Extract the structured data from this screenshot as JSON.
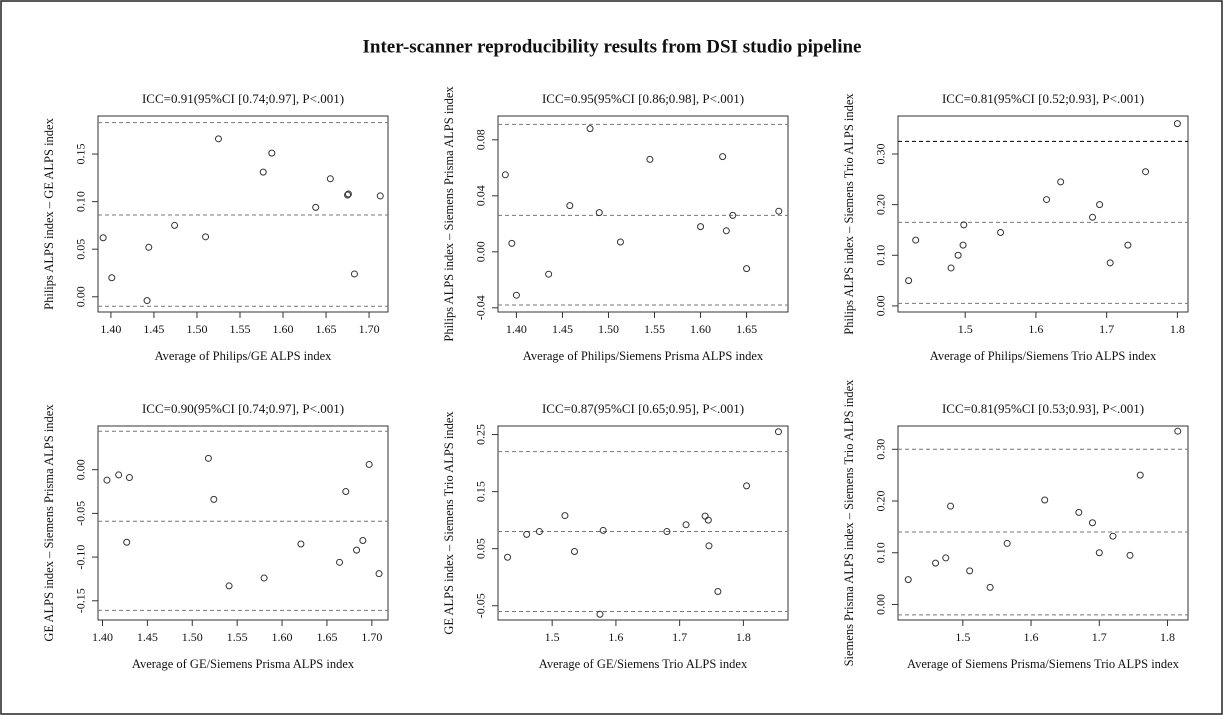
{
  "title": "Inter-scanner reproducibility results from DSI studio pipeline",
  "chart_data": [
    {
      "type": "scatter",
      "title": "ICC=0.91(95%CI [0.74;0.97], P<.001)",
      "x_label": "Average of Philips/GE ALPS index",
      "y_label": "Philips ALPS index – GE ALPS index",
      "x": [
        1.391,
        1.401,
        1.442,
        1.444,
        1.474,
        1.51,
        1.525,
        1.577,
        1.587,
        1.638,
        1.655,
        1.675,
        1.676,
        1.683,
        1.713
      ],
      "values": [
        0.062,
        0.02,
        -0.004,
        0.052,
        0.075,
        0.063,
        0.166,
        0.131,
        0.151,
        0.094,
        0.124,
        0.107,
        0.108,
        0.024,
        0.106
      ],
      "hlines": [
        0.183,
        0.086,
        -0.01
      ],
      "hline_colors": [
        "#777777",
        "#777777",
        "#777777"
      ],
      "color": "#333333",
      "xlim": [
        1.385,
        1.722
      ],
      "ylim": [
        -0.016,
        0.19
      ],
      "xticks": [
        {
          "value": 1.4,
          "label": "1.40"
        },
        1.45,
        {
          "value": 1.5,
          "label": "1.50"
        },
        1.55,
        {
          "value": 1.6,
          "label": "1.60"
        },
        1.65,
        {
          "value": 1.7,
          "label": "1.70"
        }
      ],
      "yticks": [
        {
          "value": 0,
          "label": "0.00"
        },
        0.05,
        {
          "value": 0.1,
          "label": "0.10"
        },
        0.15
      ]
    },
    {
      "type": "scatter",
      "title": "ICC=0.95(95%CI [0.86;0.98], P<.001)",
      "x_label": "Average of Philips/Siemens Prisma ALPS index",
      "y_label": "Philips ALPS index – Siemens Prisma ALPS index",
      "x": [
        1.388,
        1.395,
        1.4,
        1.435,
        1.458,
        1.48,
        1.49,
        1.513,
        1.545,
        1.6,
        1.624,
        1.628,
        1.635,
        1.65,
        1.685
      ],
      "values": [
        0.055,
        0.006,
        -0.031,
        -0.016,
        0.033,
        0.088,
        0.028,
        0.007,
        0.066,
        0.018,
        0.068,
        0.015,
        0.026,
        -0.012,
        0.029
      ],
      "hlines": [
        0.091,
        0.026,
        -0.038
      ],
      "hline_colors": [
        "#777777",
        "#777777",
        "#777777"
      ],
      "color": "#333333",
      "xlim": [
        1.38,
        1.695
      ],
      "ylim": [
        -0.043,
        0.097
      ],
      "xticks": [
        {
          "value": 1.4,
          "label": "1.40"
        },
        1.45,
        {
          "value": 1.5,
          "label": "1.50"
        },
        1.55,
        {
          "value": 1.6,
          "label": "1.60"
        },
        1.65
      ],
      "yticks": [
        -0.04,
        {
          "value": 0,
          "label": "0.00"
        },
        0.04,
        0.08
      ]
    },
    {
      "type": "scatter",
      "title": "ICC=0.81(95%CI [0.52;0.93], P<.001)",
      "x_label": "Average of Philips/Siemens Trio ALPS index",
      "y_label": "Philips ALPS index – Siemens Trio ALPS index",
      "x": [
        1.42,
        1.43,
        1.48,
        1.49,
        1.497,
        1.498,
        1.55,
        1.615,
        1.635,
        1.68,
        1.69,
        1.705,
        1.73,
        1.755,
        1.8
      ],
      "values": [
        0.05,
        0.13,
        0.075,
        0.1,
        0.12,
        0.16,
        0.145,
        0.21,
        0.245,
        0.175,
        0.2,
        0.085,
        0.12,
        0.265,
        0.36
      ],
      "hlines": [
        0.325,
        0.165,
        0.005
      ],
      "hline_colors": [
        "#000000",
        "#777777",
        "#777777"
      ],
      "color": "#333333",
      "xlim": [
        1.405,
        1.815
      ],
      "ylim": [
        -0.012,
        0.375
      ],
      "xticks": [
        1.5,
        1.6,
        1.7,
        1.8
      ],
      "yticks": [
        {
          "value": 0,
          "label": "0.00"
        },
        {
          "value": 0.1,
          "label": "0.10"
        },
        {
          "value": 0.2,
          "label": "0.20"
        },
        {
          "value": 0.3,
          "label": "0.30"
        }
      ]
    },
    {
      "type": "scatter",
      "title": "ICC=0.90(95%CI [0.74;0.97], P<.001)",
      "x_label": "Average of GE/Siemens Prisma ALPS index",
      "y_label": "GE ALPS index – Siemens Prisma ALPS index",
      "x": [
        1.405,
        1.418,
        1.427,
        1.43,
        1.518,
        1.524,
        1.541,
        1.58,
        1.621,
        1.664,
        1.671,
        1.683,
        1.69,
        1.697,
        1.708
      ],
      "values": [
        -0.012,
        -0.006,
        -0.083,
        -0.009,
        0.013,
        -0.034,
        -0.133,
        -0.124,
        -0.085,
        -0.106,
        -0.025,
        -0.092,
        -0.081,
        0.006,
        -0.119
      ],
      "hlines": [
        0.044,
        -0.059,
        -0.161
      ],
      "hline_colors": [
        "#777777",
        "#777777",
        "#777777"
      ],
      "color": "#333333",
      "xlim": [
        1.395,
        1.718
      ],
      "ylim": [
        -0.172,
        0.05
      ],
      "xticks": [
        {
          "value": 1.4,
          "label": "1.40"
        },
        1.45,
        {
          "value": 1.5,
          "label": "1.50"
        },
        1.55,
        {
          "value": 1.6,
          "label": "1.60"
        },
        1.65,
        {
          "value": 1.7,
          "label": "1.70"
        }
      ],
      "yticks": [
        -0.15,
        {
          "value": -0.1,
          "label": "-0.10"
        },
        -0.05,
        {
          "value": 0,
          "label": "0.00"
        }
      ]
    },
    {
      "type": "scatter",
      "title": "ICC=0.87(95%CI [0.65;0.95], P<.001)",
      "x_label": "Average of GE/Siemens Trio ALPS index",
      "y_label": "GE ALPS index – Siemens Trio ALPS index",
      "x": [
        1.43,
        1.46,
        1.48,
        1.52,
        1.535,
        1.575,
        1.58,
        1.68,
        1.71,
        1.74,
        1.745,
        1.746,
        1.76,
        1.805,
        1.855
      ],
      "values": [
        0.035,
        0.075,
        0.08,
        0.108,
        0.045,
        -0.065,
        0.082,
        0.08,
        0.092,
        0.107,
        0.1,
        0.055,
        -0.025,
        0.16,
        0.255
      ],
      "hlines": [
        0.22,
        0.08,
        -0.06
      ],
      "hline_colors": [
        "#777777",
        "#777777",
        "#777777"
      ],
      "color": "#333333",
      "xlim": [
        1.415,
        1.87
      ],
      "ylim": [
        -0.075,
        0.265
      ],
      "xticks": [
        1.5,
        1.6,
        1.7,
        1.8
      ],
      "yticks": [
        -0.05,
        0.05,
        0.15,
        0.25
      ]
    },
    {
      "type": "scatter",
      "title": "ICC=0.81(95%CI [0.53;0.93], P<.001)",
      "x_label": "Average of Siemens Prisma/Siemens Trio ALPS index",
      "y_label": "Siemens Prisma ALPS index – Siemens Trio ALPS index",
      "x": [
        1.42,
        1.46,
        1.475,
        1.482,
        1.51,
        1.54,
        1.565,
        1.62,
        1.67,
        1.69,
        1.7,
        1.72,
        1.745,
        1.76,
        1.815
      ],
      "values": [
        0.048,
        0.08,
        0.09,
        0.19,
        0.065,
        0.033,
        0.118,
        0.202,
        0.178,
        0.158,
        0.1,
        0.132,
        0.095,
        0.25,
        0.335
      ],
      "hlines": [
        0.3,
        0.14,
        -0.02
      ],
      "hline_colors": [
        "#777777",
        "#777777",
        "#777777"
      ],
      "color": "#333333",
      "xlim": [
        1.405,
        1.83
      ],
      "ylim": [
        -0.03,
        0.345
      ],
      "xticks": [
        1.5,
        1.6,
        1.7,
        1.8
      ],
      "yticks": [
        {
          "value": 0,
          "label": "0.00"
        },
        {
          "value": 0.1,
          "label": "0.10"
        },
        {
          "value": 0.2,
          "label": "0.20"
        },
        {
          "value": 0.3,
          "label": "0.30"
        }
      ]
    }
  ]
}
